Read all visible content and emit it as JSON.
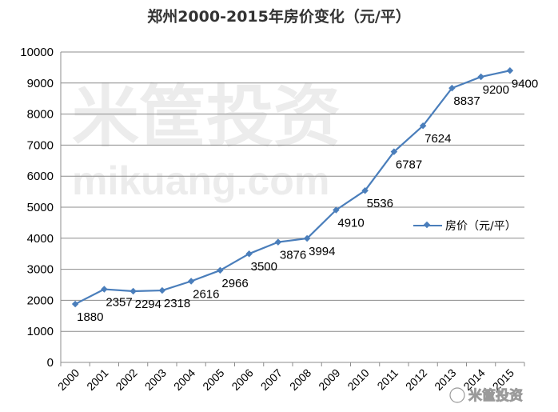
{
  "chart_data": {
    "type": "line",
    "title": "郑州2000-2015年房价变化（元/平）",
    "categories": [
      "2000",
      "2001",
      "2002",
      "2003",
      "2004",
      "2005",
      "2006",
      "2007",
      "2008",
      "2009",
      "2010",
      "2011",
      "2012",
      "2013",
      "2014",
      "2015"
    ],
    "series": [
      {
        "name": "房价（元/平）",
        "values": [
          1880,
          2357,
          2294,
          2318,
          2616,
          2966,
          3500,
          3876,
          3994,
          4910,
          5536,
          6787,
          7624,
          8837,
          9200,
          9400
        ],
        "color": "#4a7ebb"
      }
    ],
    "ylim": [
      0,
      10000
    ],
    "yticks": [
      0,
      1000,
      2000,
      3000,
      4000,
      5000,
      6000,
      7000,
      8000,
      9000,
      10000
    ],
    "grid": true,
    "legend": "right",
    "xlabel": "",
    "ylabel": ""
  },
  "watermark": {
    "main": "米筐投资",
    "domain": "mikuang.com",
    "corner": "米筐投资"
  }
}
